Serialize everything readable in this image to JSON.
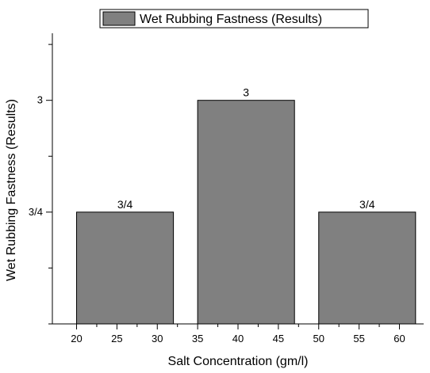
{
  "chart_data": {
    "type": "bar",
    "legend": "Wet Rubbing Fastness (Results)",
    "legend_position": "top-center",
    "xlabel": "Salt Concentration (gm/l)",
    "ylabel": "Wet Rubbing Fastness (Results)",
    "xlim": [
      17,
      63
    ],
    "x_ticks": [
      20,
      25,
      30,
      35,
      40,
      45,
      50,
      55,
      60
    ],
    "ylim": [
      2,
      3.3
    ],
    "y_tick_labels": [
      {
        "value": 2.5,
        "label": "3/4"
      },
      {
        "value": 3,
        "label": "3"
      }
    ],
    "grid": false,
    "bar_color": "#808080",
    "bars": [
      {
        "x_start": 20,
        "x_end": 32,
        "value": 2.5,
        "label": "3/4"
      },
      {
        "x_start": 35,
        "x_end": 47,
        "value": 3,
        "label": "3"
      },
      {
        "x_start": 50,
        "x_end": 62,
        "value": 2.5,
        "label": "3/4"
      }
    ]
  }
}
